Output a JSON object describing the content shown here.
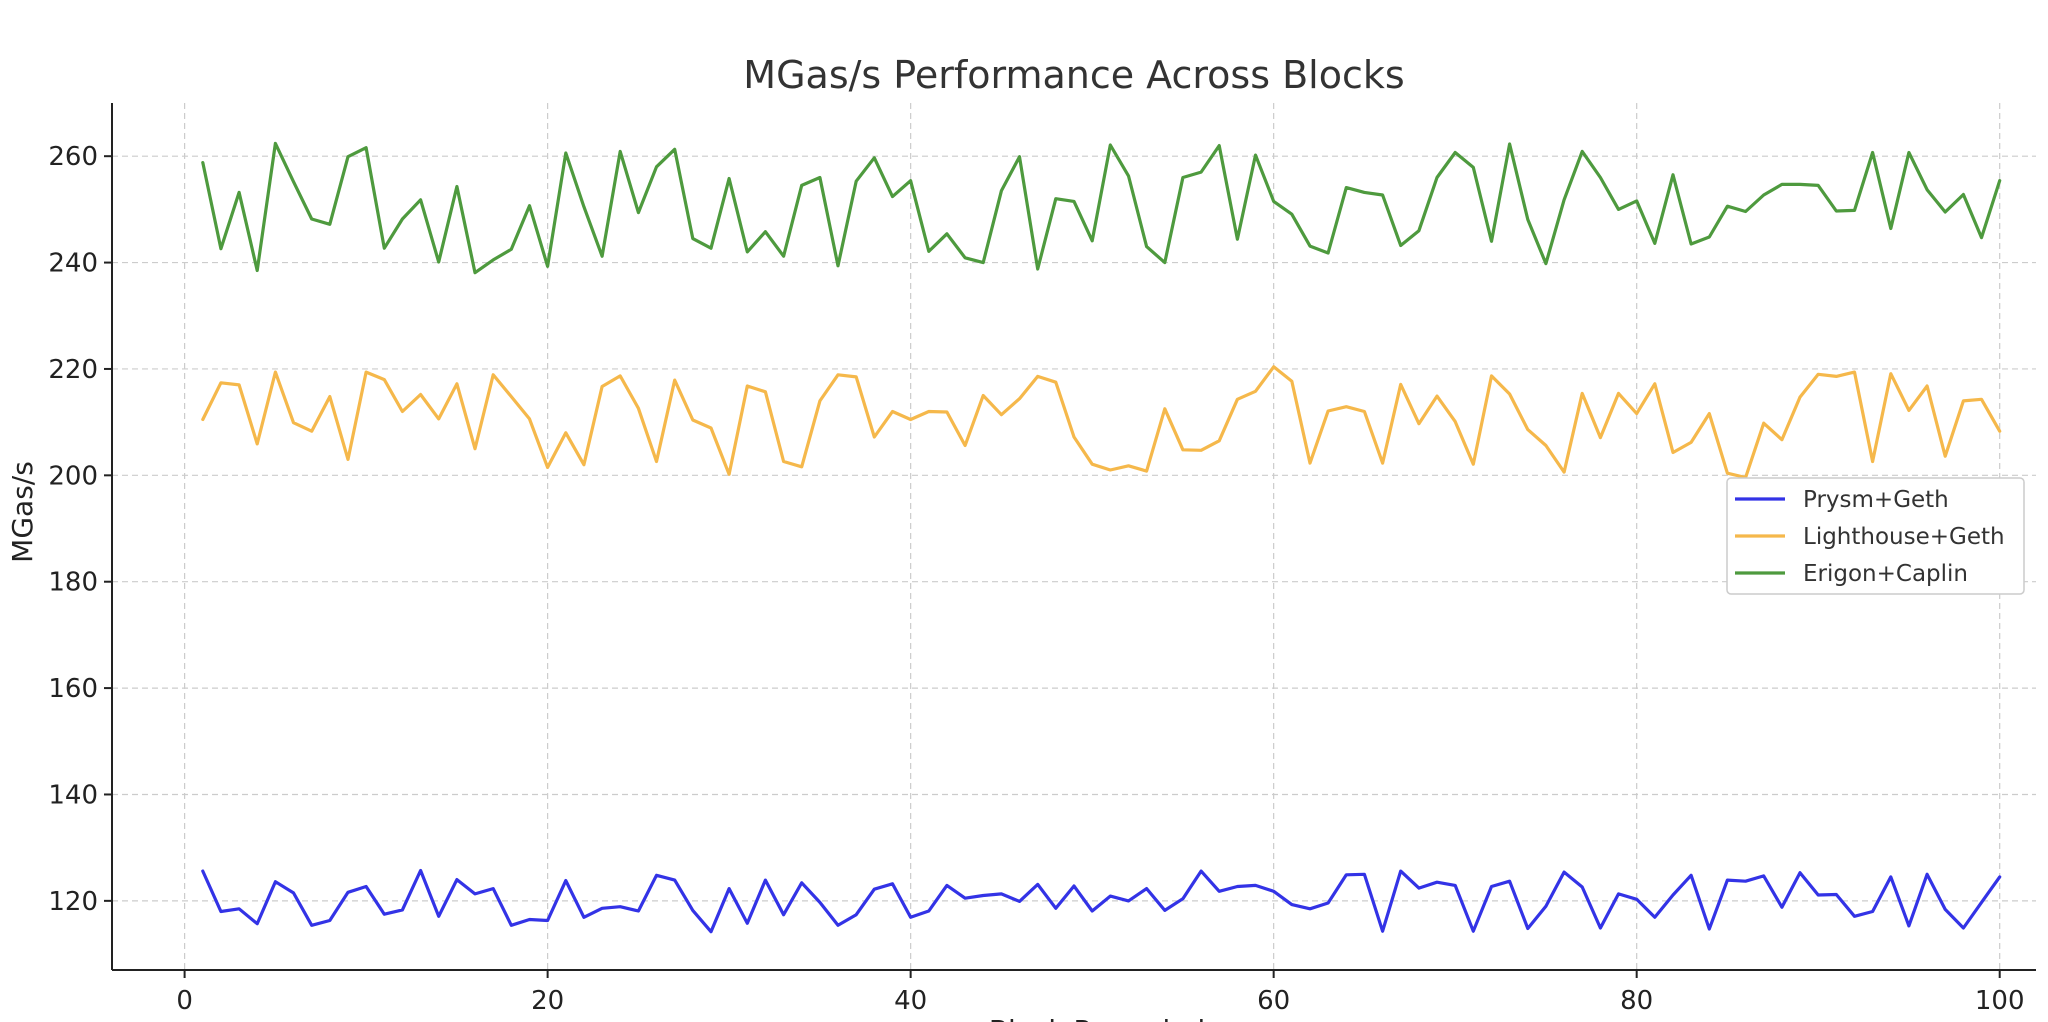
{
  "chart_data": {
    "type": "line",
    "title": "MGas/s Performance Across Blocks",
    "xlabel": "Block Recorded",
    "ylabel": "MGas/s",
    "xlim": [
      -4,
      102
    ],
    "ylim": [
      107,
      270
    ],
    "xticks": [
      0,
      20,
      40,
      60,
      80,
      100
    ],
    "yticks": [
      120,
      140,
      160,
      180,
      200,
      220,
      240,
      260
    ],
    "grid": true,
    "legend_position": "center-right",
    "x": [
      1,
      2,
      3,
      4,
      5,
      6,
      7,
      8,
      9,
      10,
      11,
      12,
      13,
      14,
      15,
      16,
      17,
      18,
      19,
      20,
      21,
      22,
      23,
      24,
      25,
      26,
      27,
      28,
      29,
      30,
      31,
      32,
      33,
      34,
      35,
      36,
      37,
      38,
      39,
      40,
      41,
      42,
      43,
      44,
      45,
      46,
      47,
      48,
      49,
      50,
      51,
      52,
      53,
      54,
      55,
      56,
      57,
      58,
      59,
      60,
      61,
      62,
      63,
      64,
      65,
      66,
      67,
      68,
      69,
      70,
      71,
      72,
      73,
      74,
      75,
      76,
      77,
      78,
      79,
      80,
      81,
      82,
      83,
      84,
      85,
      86,
      87,
      88,
      89,
      90,
      91,
      92,
      93,
      94,
      95,
      96,
      97,
      98,
      99,
      100
    ],
    "series": [
      {
        "name": "Prysm+Geth",
        "color": "#3333e6",
        "values": [
          125.6,
          118.0,
          118.5,
          115.7,
          123.6,
          121.5,
          115.4,
          116.3,
          121.6,
          122.7,
          117.5,
          118.3,
          125.7,
          117.1,
          124.0,
          121.3,
          122.3,
          115.4,
          116.5,
          116.3,
          123.8,
          116.9,
          118.6,
          118.9,
          118.1,
          124.8,
          123.9,
          118.2,
          114.2,
          122.3,
          115.8,
          123.9,
          117.4,
          123.4,
          119.7,
          115.4,
          117.4,
          122.2,
          123.2,
          116.9,
          118.1,
          122.9,
          120.5,
          121.0,
          121.3,
          119.9,
          123.1,
          118.6,
          122.8,
          118.1,
          120.9,
          120.0,
          122.3,
          118.2,
          120.4,
          125.6,
          121.8,
          122.7,
          122.9,
          121.8,
          119.3,
          118.5,
          119.6,
          124.9,
          125.0,
          114.3,
          125.6,
          122.4,
          123.5,
          122.9,
          114.3,
          122.7,
          123.7,
          114.8,
          119.0,
          125.4,
          122.6,
          114.9,
          121.3,
          120.3,
          116.9,
          121.1,
          124.8,
          114.7,
          123.9,
          123.7,
          124.7,
          118.8,
          125.3,
          121.1,
          121.2,
          117.1,
          118.0,
          124.5,
          115.3,
          125.0,
          118.4,
          114.9,
          119.7,
          124.5
        ]
      },
      {
        "name": "Lighthouse+Geth",
        "color": "#f5b84b",
        "values": [
          210.5,
          217.4,
          217.0,
          205.9,
          219.4,
          209.9,
          208.3,
          214.8,
          203.0,
          219.4,
          218.0,
          212.0,
          215.2,
          210.6,
          217.2,
          205.0,
          218.9,
          214.8,
          210.6,
          201.5,
          208.0,
          202.0,
          216.7,
          218.7,
          212.6,
          202.6,
          217.9,
          210.4,
          208.9,
          200.2,
          216.8,
          215.7,
          202.6,
          201.6,
          214.0,
          218.9,
          218.5,
          207.2,
          212.0,
          210.5,
          212.0,
          211.9,
          205.6,
          215.0,
          211.4,
          214.4,
          218.6,
          217.5,
          207.2,
          202.1,
          201.0,
          201.8,
          200.8,
          212.5,
          204.8,
          204.7,
          206.5,
          214.3,
          215.8,
          220.4,
          217.7,
          202.3,
          212.1,
          212.9,
          212.0,
          202.3,
          217.1,
          209.7,
          214.9,
          210.1,
          202.1,
          218.7,
          215.3,
          208.6,
          205.6,
          200.6,
          215.4,
          207.1,
          215.4,
          211.6,
          217.2,
          204.3,
          206.2,
          211.6,
          200.4,
          199.6,
          209.8,
          206.7,
          214.7,
          219.0,
          218.6,
          219.4,
          202.6,
          219.1,
          212.2,
          216.8,
          203.6,
          214.0,
          214.3,
          208.3
        ]
      },
      {
        "name": "Erigon+Caplin",
        "color": "#4e9a3e",
        "values": [
          258.8,
          242.6,
          253.2,
          238.5,
          262.4,
          255.2,
          248.2,
          247.2,
          259.9,
          261.6,
          242.7,
          248.2,
          251.8,
          240.1,
          254.3,
          238.1,
          240.5,
          242.5,
          250.7,
          239.3,
          260.6,
          250.5,
          241.2,
          260.9,
          249.4,
          258.0,
          261.3,
          244.5,
          242.7,
          255.8,
          242.0,
          245.8,
          241.2,
          254.5,
          256.0,
          239.4,
          255.3,
          259.7,
          252.4,
          255.4,
          242.1,
          245.4,
          240.9,
          240.0,
          253.5,
          259.9,
          238.8,
          252.0,
          251.5,
          244.1,
          262.1,
          256.3,
          243.0,
          240.0,
          256.0,
          257.0,
          262.0,
          244.4,
          260.2,
          251.5,
          249.1,
          243.1,
          241.8,
          254.1,
          253.2,
          252.7,
          243.2,
          246.0,
          256.0,
          260.7,
          257.9,
          244.0,
          262.3,
          248.1,
          239.8,
          251.8,
          260.9,
          256.0,
          250.0,
          251.6,
          243.6,
          256.5,
          243.5,
          244.8,
          250.6,
          249.6,
          252.7,
          254.7,
          254.7,
          254.5,
          249.7,
          249.8,
          260.7,
          246.4,
          260.7,
          253.7,
          249.5,
          252.8,
          244.7,
          255.4
        ]
      }
    ]
  }
}
